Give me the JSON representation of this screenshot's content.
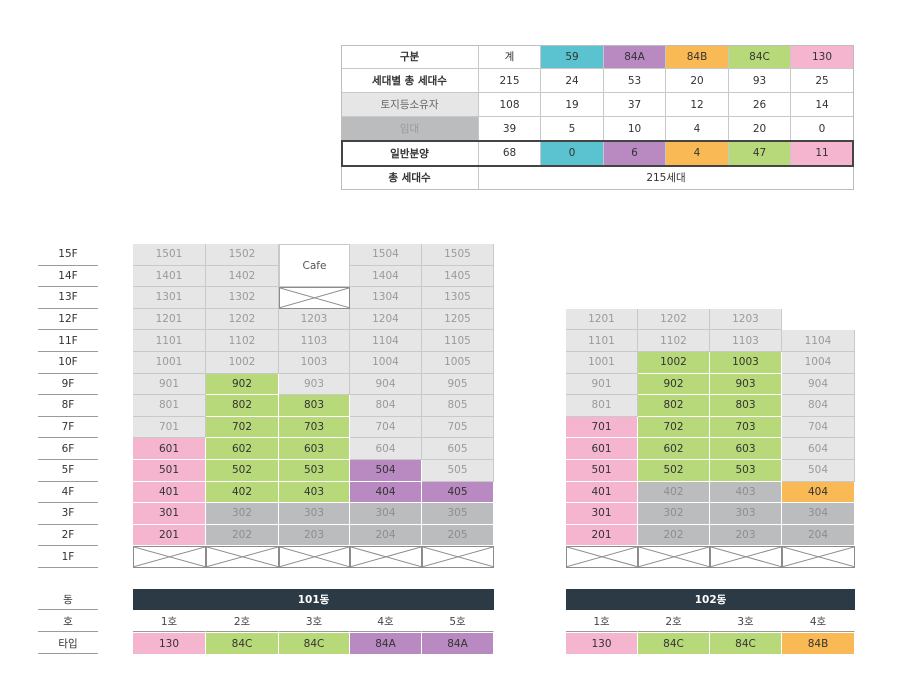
{
  "colors": {
    "t59": "#5ac3cf",
    "t84A": "#b98ac2",
    "t84B": "#f9b955",
    "t84C": "#b8d97a",
    "t130": "#f6b5cf",
    "rental": "#bbbcbe",
    "landowner": "#e6e6e6",
    "lightGrey": "#e6e6e6",
    "dark": "#2c3a46"
  },
  "summary": {
    "headers": [
      "구분",
      "계",
      "59",
      "84A",
      "84B",
      "84C",
      "130"
    ],
    "rows": [
      {
        "label": "세대별 총 세대수",
        "values": [
          "215",
          "24",
          "53",
          "20",
          "93",
          "25"
        ]
      },
      {
        "label": "토지등소유자",
        "values": [
          "108",
          "19",
          "37",
          "12",
          "26",
          "14"
        ]
      },
      {
        "label": "임대",
        "values": [
          "39",
          "5",
          "10",
          "4",
          "20",
          "0"
        ]
      },
      {
        "label": "일반분양",
        "values": [
          "68",
          "0",
          "6",
          "4",
          "47",
          "11"
        ]
      }
    ],
    "total_label": "총 세대수",
    "total_value": "215세대"
  },
  "floors": [
    "15F",
    "14F",
    "13F",
    "12F",
    "11F",
    "10F",
    "9F",
    "8F",
    "7F",
    "6F",
    "5F",
    "4F",
    "3F",
    "2F",
    "1F"
  ],
  "legend_labels": {
    "dong": "동",
    "ho": "호",
    "type": "타입"
  },
  "building101": {
    "name": "101동",
    "cafe_label": "Cafe",
    "ho": [
      "1호",
      "2호",
      "3호",
      "4호",
      "5호"
    ],
    "types": [
      "130",
      "84C",
      "84C",
      "84A",
      "84A"
    ],
    "units": [
      [
        [
          "1501",
          "g"
        ],
        [
          "1502",
          "g"
        ],
        null,
        [
          "1504",
          "g"
        ],
        [
          "1505",
          "g"
        ]
      ],
      [
        [
          "1401",
          "g"
        ],
        [
          "1402",
          "g"
        ],
        null,
        [
          "1404",
          "g"
        ],
        [
          "1405",
          "g"
        ]
      ],
      [
        [
          "1301",
          "g"
        ],
        [
          "1302",
          "g"
        ],
        "x",
        [
          "1304",
          "g"
        ],
        [
          "1305",
          "g"
        ]
      ],
      [
        [
          "1201",
          "g"
        ],
        [
          "1202",
          "g"
        ],
        [
          "1203",
          "g"
        ],
        [
          "1204",
          "g"
        ],
        [
          "1205",
          "g"
        ]
      ],
      [
        [
          "1101",
          "g"
        ],
        [
          "1102",
          "g"
        ],
        [
          "1103",
          "g"
        ],
        [
          "1104",
          "g"
        ],
        [
          "1105",
          "g"
        ]
      ],
      [
        [
          "1001",
          "g"
        ],
        [
          "1002",
          "g"
        ],
        [
          "1003",
          "g"
        ],
        [
          "1004",
          "g"
        ],
        [
          "1005",
          "g"
        ]
      ],
      [
        [
          "901",
          "g"
        ],
        [
          "902",
          "84C"
        ],
        [
          "903",
          "g"
        ],
        [
          "904",
          "g"
        ],
        [
          "905",
          "g"
        ]
      ],
      [
        [
          "801",
          "g"
        ],
        [
          "802",
          "84C"
        ],
        [
          "803",
          "84C"
        ],
        [
          "804",
          "g"
        ],
        [
          "805",
          "g"
        ]
      ],
      [
        [
          "701",
          "g"
        ],
        [
          "702",
          "84C"
        ],
        [
          "703",
          "84C"
        ],
        [
          "704",
          "g"
        ],
        [
          "705",
          "g"
        ]
      ],
      [
        [
          "601",
          "130"
        ],
        [
          "602",
          "84C"
        ],
        [
          "603",
          "84C"
        ],
        [
          "604",
          "g"
        ],
        [
          "605",
          "g"
        ]
      ],
      [
        [
          "501",
          "130"
        ],
        [
          "502",
          "84C"
        ],
        [
          "503",
          "84C"
        ],
        [
          "504",
          "84A"
        ],
        [
          "505",
          "g"
        ]
      ],
      [
        [
          "401",
          "130"
        ],
        [
          "402",
          "84C"
        ],
        [
          "403",
          "84C"
        ],
        [
          "404",
          "84A"
        ],
        [
          "405",
          "84A"
        ]
      ],
      [
        [
          "301",
          "130"
        ],
        [
          "302",
          "r"
        ],
        [
          "303",
          "r"
        ],
        [
          "304",
          "r"
        ],
        [
          "305",
          "r"
        ]
      ],
      [
        [
          "201",
          "130"
        ],
        [
          "202",
          "r"
        ],
        [
          "203",
          "r"
        ],
        [
          "204",
          "r"
        ],
        [
          "205",
          "r"
        ]
      ],
      [
        "x",
        "x",
        "x",
        "x",
        "x"
      ]
    ]
  },
  "building102": {
    "name": "102동",
    "ho": [
      "1호",
      "2호",
      "3호",
      "4호"
    ],
    "types": [
      "130",
      "84C",
      "84C",
      "84B"
    ],
    "units": [
      [
        [
          "1201",
          "g"
        ],
        [
          "1202",
          "g"
        ],
        [
          "1203",
          "g"
        ],
        null
      ],
      [
        [
          "1101",
          "g"
        ],
        [
          "1102",
          "g"
        ],
        [
          "1103",
          "g"
        ],
        [
          "1104",
          "g"
        ]
      ],
      [
        [
          "1001",
          "g"
        ],
        [
          "1002",
          "84C"
        ],
        [
          "1003",
          "84C"
        ],
        [
          "1004",
          "g"
        ]
      ],
      [
        [
          "901",
          "g"
        ],
        [
          "902",
          "84C"
        ],
        [
          "903",
          "84C"
        ],
        [
          "904",
          "g"
        ]
      ],
      [
        [
          "801",
          "g"
        ],
        [
          "802",
          "84C"
        ],
        [
          "803",
          "84C"
        ],
        [
          "804",
          "g"
        ]
      ],
      [
        [
          "701",
          "130"
        ],
        [
          "702",
          "84C"
        ],
        [
          "703",
          "84C"
        ],
        [
          "704",
          "g"
        ]
      ],
      [
        [
          "601",
          "130"
        ],
        [
          "602",
          "84C"
        ],
        [
          "603",
          "84C"
        ],
        [
          "604",
          "g"
        ]
      ],
      [
        [
          "501",
          "130"
        ],
        [
          "502",
          "84C"
        ],
        [
          "503",
          "84C"
        ],
        [
          "504",
          "g"
        ]
      ],
      [
        [
          "401",
          "130"
        ],
        [
          "402",
          "r"
        ],
        [
          "403",
          "r"
        ],
        [
          "404",
          "84B"
        ]
      ],
      [
        [
          "301",
          "130"
        ],
        [
          "302",
          "r"
        ],
        [
          "303",
          "r"
        ],
        [
          "304",
          "r"
        ]
      ],
      [
        [
          "201",
          "130"
        ],
        [
          "202",
          "r"
        ],
        [
          "203",
          "r"
        ],
        [
          "204",
          "r"
        ]
      ],
      [
        "x",
        "x",
        "x",
        "x"
      ]
    ]
  }
}
